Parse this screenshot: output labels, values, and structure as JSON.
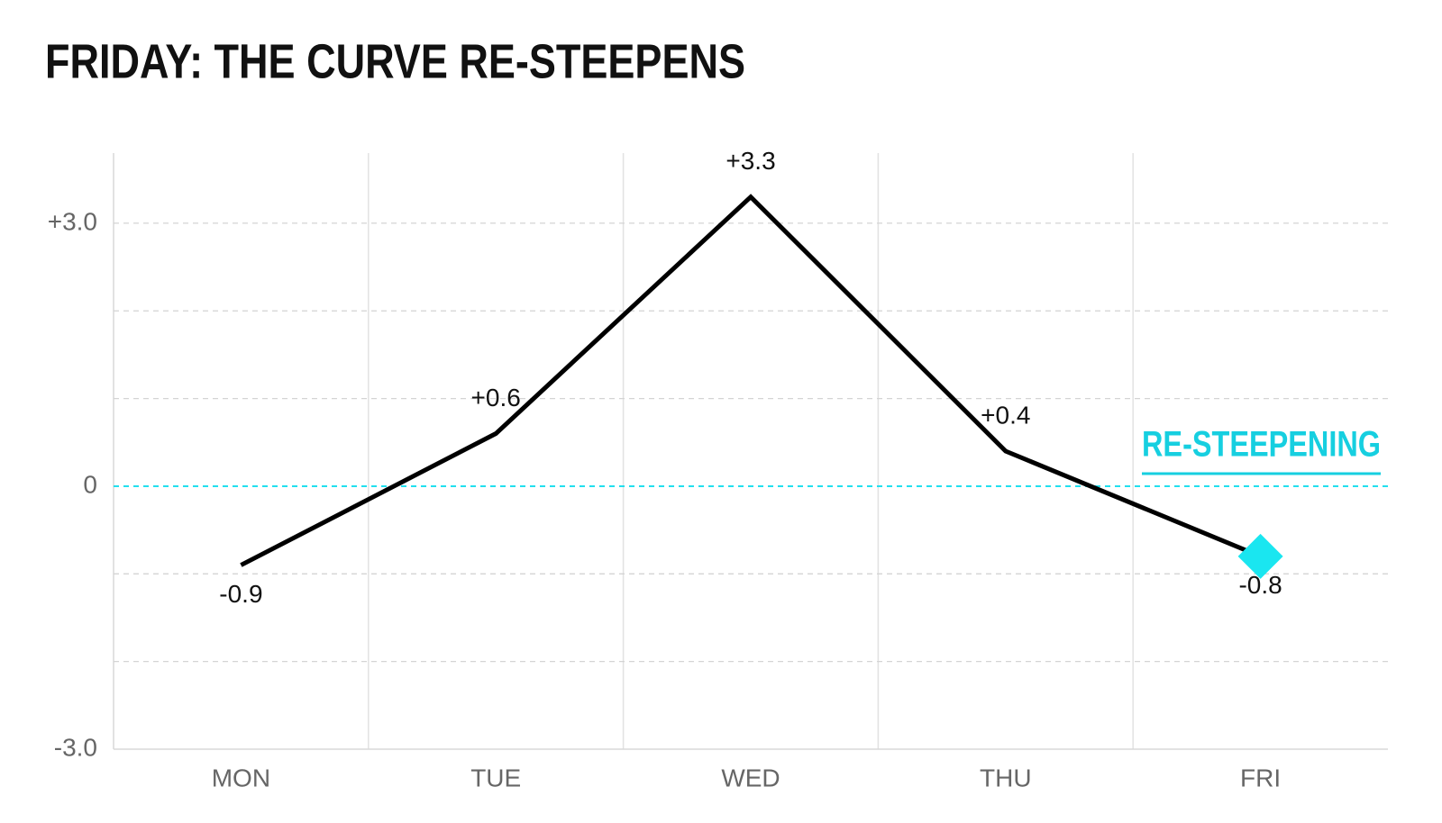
{
  "chart_data": {
    "type": "line",
    "title": "FRIDAY: THE CURVE RE-STEEPENS",
    "categories": [
      "MON",
      "TUE",
      "WED",
      "THU",
      "FRI"
    ],
    "series": [
      {
        "name": null,
        "color": "#000000",
        "values": [
          -0.9,
          0.6,
          3.3,
          0.4,
          -0.8
        ],
        "value_labels": [
          "-0.9",
          "+0.6",
          "+3.3",
          "+0.4",
          "-0.8"
        ]
      }
    ],
    "ylim": [
      -3.0,
      3.8
    ],
    "yticks": [
      {
        "value": -3,
        "label": "-3.0"
      },
      0,
      {
        "value": 3,
        "label": "+3.0"
      }
    ],
    "minor_gridlines": [
      -2,
      -1,
      1,
      2
    ],
    "grid": true,
    "zero_line_color": "#22dfee",
    "highlight": {
      "index": 4,
      "color": "#1ae6f0"
    },
    "annotation": {
      "text": "RE-STEEPENING",
      "color": "#16cfe0"
    }
  }
}
